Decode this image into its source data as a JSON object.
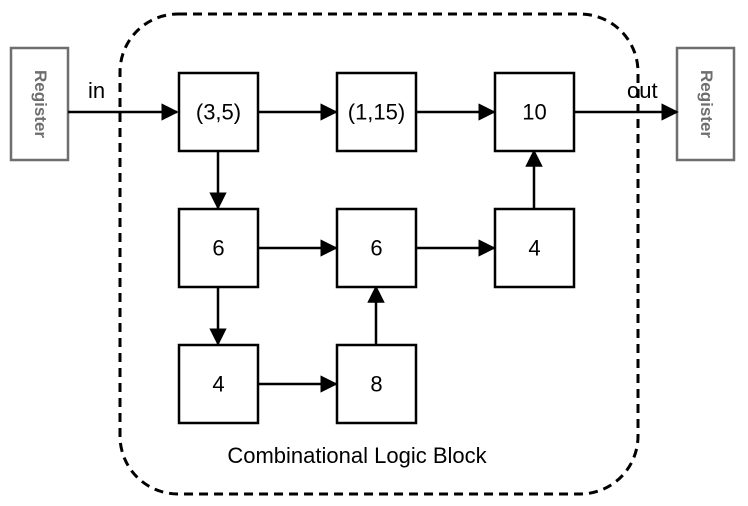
{
  "registers": {
    "left_label": "Register",
    "right_label": "Register"
  },
  "io": {
    "input_label": "in",
    "output_label": "out"
  },
  "block": {
    "label": "Combinational Logic Block"
  },
  "nodes": {
    "n1": "(3,5)",
    "n2": "(1,15)",
    "n3": "10",
    "n4": "6",
    "n5": "6",
    "n6": "4",
    "n7": "4",
    "n8": "8"
  },
  "colors": {
    "lines": "#000000",
    "register_border": "#6e6e6e"
  }
}
